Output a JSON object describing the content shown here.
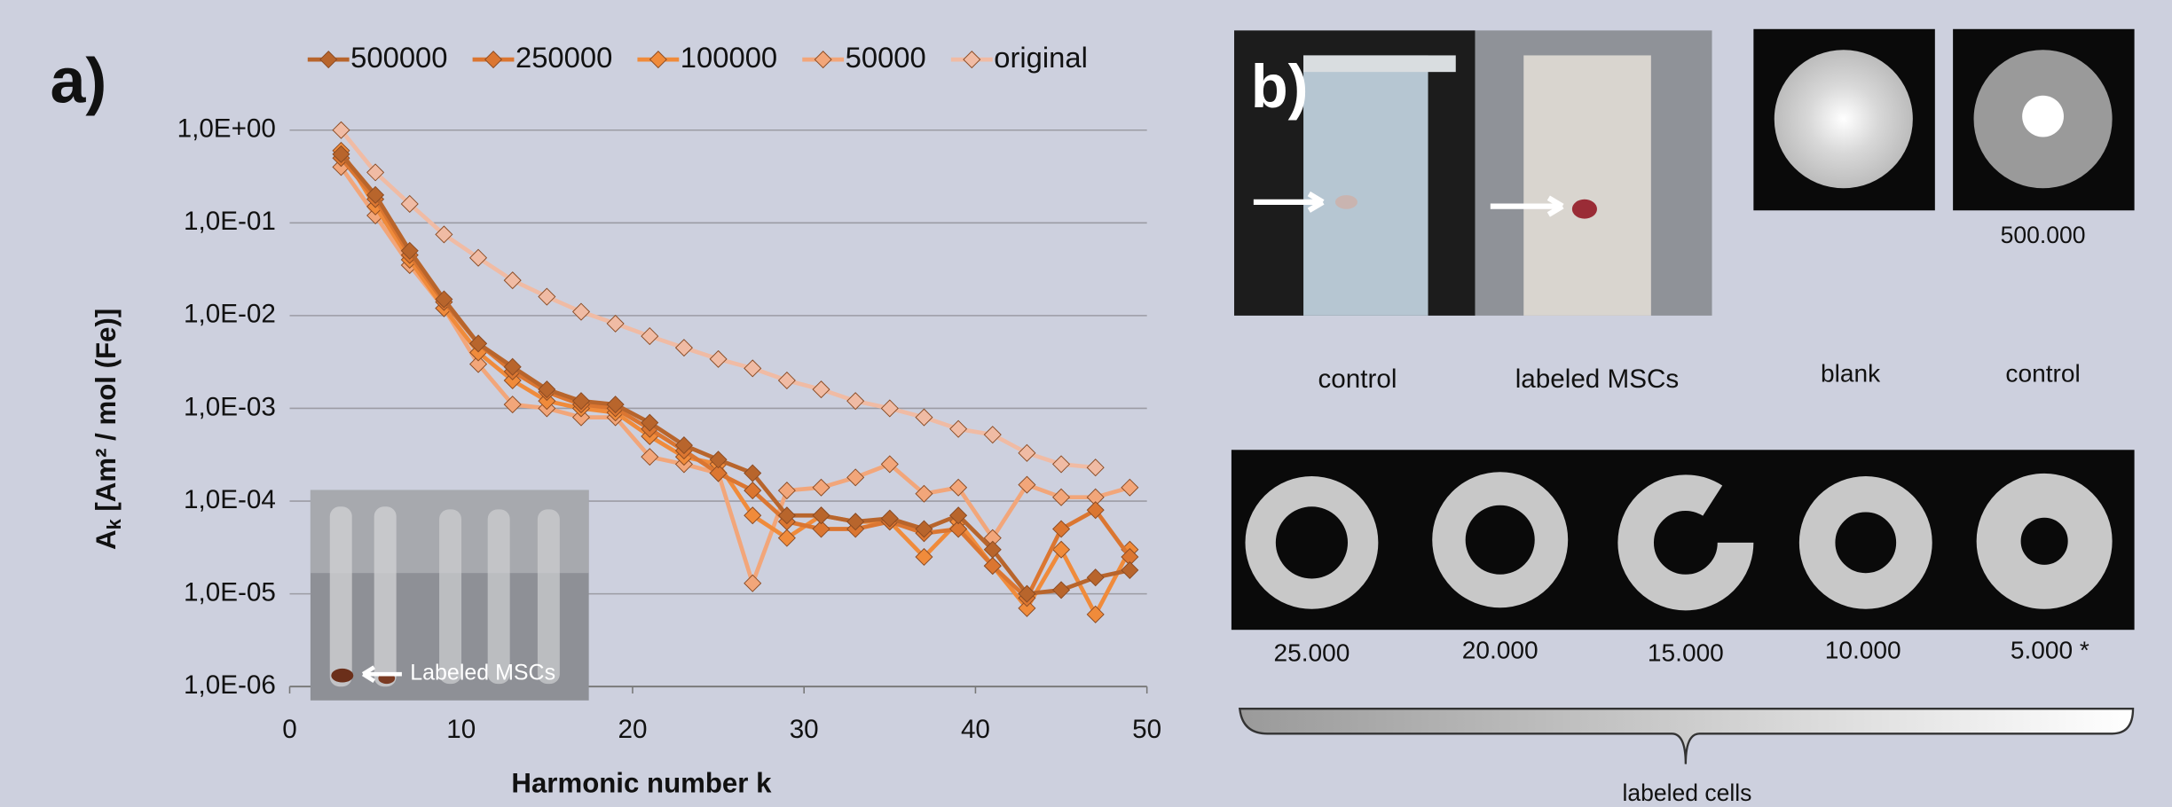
{
  "chart_data": {
    "type": "line",
    "log_y": true,
    "grid": true,
    "legend": "top",
    "ylabel": {
      "main": "A",
      "sub": "k",
      "rest": " [Am² / mol (Fe)]"
    },
    "xlabel": "Harmonic number k",
    "x": [
      3,
      5,
      7,
      9,
      11,
      13,
      15,
      17,
      19,
      21,
      23,
      25,
      27,
      29,
      31,
      33,
      35,
      37,
      39,
      41,
      43,
      45,
      47,
      49
    ],
    "xlim": [
      0,
      50
    ],
    "xticks": [
      0,
      10,
      20,
      30,
      40,
      50
    ],
    "ylim": [
      1e-06,
      1
    ],
    "yticks": [
      {
        "value": 1e-06,
        "label": "1,0E-06"
      },
      {
        "value": 1e-05,
        "label": "1,0E-05"
      },
      {
        "value": 0.0001,
        "label": "1,0E-04"
      },
      {
        "value": 0.001,
        "label": "1,0E-03"
      },
      {
        "value": 0.01,
        "label": "1,0E-02"
      },
      {
        "value": 0.1,
        "label": "1,0E-01"
      },
      {
        "value": 1,
        "label": "1,0E+00"
      }
    ],
    "series": [
      {
        "name": "500000",
        "color": "#b8652c",
        "values": [
          0.55,
          0.2,
          0.05,
          0.015,
          0.005,
          0.0028,
          0.0016,
          0.0012,
          0.0011,
          0.0007,
          0.0004,
          0.00028,
          0.0002,
          7e-05,
          7e-05,
          6e-05,
          6.5e-05,
          5e-05,
          7e-05,
          3e-05,
          1e-05,
          1.1e-05,
          1.5e-05,
          1.8e-05
        ]
      },
      {
        "name": "250000",
        "color": "#db7631",
        "values": [
          0.5,
          0.18,
          0.045,
          0.014,
          0.005,
          0.0025,
          0.0015,
          0.0011,
          0.001,
          0.0006,
          0.00035,
          0.0002,
          0.00013,
          6e-05,
          5e-05,
          5e-05,
          6e-05,
          4.5e-05,
          5e-05,
          2e-05,
          9e-06,
          5e-05,
          8e-05,
          2.5e-05
        ]
      },
      {
        "name": "100000",
        "color": "#f08b3b",
        "values": [
          0.6,
          0.15,
          0.04,
          0.012,
          0.004,
          0.002,
          0.0012,
          0.001,
          0.0009,
          0.0005,
          0.0003,
          0.00025,
          7e-05,
          4e-05,
          7e-05,
          6e-05,
          6e-05,
          2.5e-05,
          6e-05,
          2e-05,
          7e-06,
          3e-05,
          6e-06,
          3e-05
        ]
      },
      {
        "name": "50000",
        "color": "#f2a67a",
        "values": [
          0.4,
          0.12,
          0.035,
          0.012,
          0.003,
          0.0011,
          0.001,
          0.0008,
          0.0008,
          0.0003,
          0.00025,
          0.0002,
          1.3e-05,
          0.00013,
          0.00014,
          0.00018,
          0.00025,
          0.00012,
          0.00014,
          4e-05,
          0.00015,
          0.00011,
          0.00011,
          0.00014
        ]
      },
      {
        "name": "original",
        "color": "#f0bba4",
        "values": [
          1.0,
          0.35,
          0.16,
          0.075,
          0.042,
          0.024,
          0.016,
          0.011,
          0.0082,
          0.006,
          0.0045,
          0.0034,
          0.0027,
          0.002,
          0.0016,
          0.0012,
          0.001,
          0.0008,
          0.0006,
          0.00052,
          0.00033,
          0.00025,
          0.00023,
          null
        ]
      }
    ]
  },
  "panel_a": {
    "label": "a)",
    "inset_label": "Labeled MSCs"
  },
  "panel_b": {
    "label": "b)",
    "tube_labels": [
      "control",
      "labeled MSCs"
    ],
    "mri_labels": [
      "blank",
      "control"
    ],
    "mri_caption": "500.000",
    "cell_counts": [
      "25.000",
      "20.000",
      "15.000",
      "10.000",
      "5.000 *"
    ],
    "bracket_label": "labeled cells"
  }
}
